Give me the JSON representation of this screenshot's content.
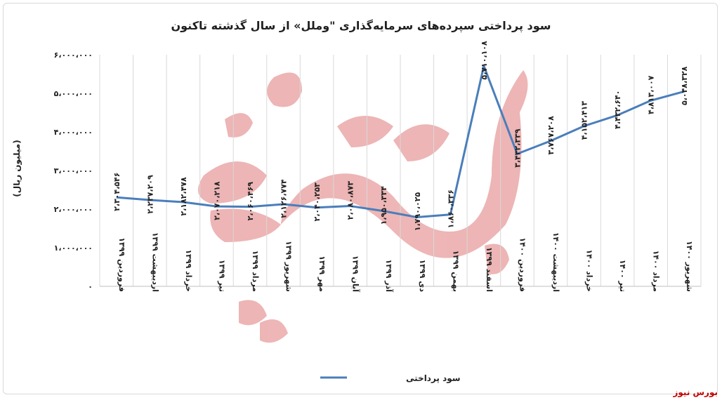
{
  "chart_data": {
    "type": "line",
    "title": "سود پرداختی سپرده‌های سرمایه‌گذاری \"وملل» از سال گذشته تاکنون",
    "ylabel": "(میلیون ریال)",
    "xlabel": "",
    "ylim": [
      0,
      6000000
    ],
    "yticks": [
      0,
      1000000,
      2000000,
      3000000,
      4000000,
      5000000,
      6000000
    ],
    "ytick_labels": [
      "۰",
      "۱،۰۰۰،۰۰۰",
      "۲،۰۰۰،۰۰۰",
      "۳،۰۰۰،۰۰۰",
      "۴،۰۰۰،۰۰۰",
      "۵،۰۰۰،۰۰۰",
      "۶،۰۰۰،۰۰۰"
    ],
    "grid": "vertical",
    "legend_position": "bottom",
    "line_color": "#4a7ebb",
    "categories": [
      "فروردین ۱۳۹۹",
      "اردیبهشت ۱۳۹۹",
      "خرداد ۱۳۹۹",
      "تیر ۱۳۹۹",
      "مرداد ۱۳۹۹",
      "شهریور ۱۳۹۹",
      "مهر ۱۳۹۹",
      "آبان ۱۳۹۹",
      "آذر ۱۳۹۹",
      "دی ۱۳۹۹",
      "بهمن ۱۳۹۹",
      "اسفند ۱۳۹۹",
      "فروردین ۱۴۰۰",
      "اردیبهشت ۱۴۰۰",
      "خرداد ۱۴۰۰",
      "تیر ۱۴۰۰",
      "مرداد ۱۴۰۰",
      "شهریور ۱۴۰۰"
    ],
    "series": [
      {
        "name": "سود پرداختی",
        "values": [
          2304546,
          2237209,
          2182478,
          2070218,
          2060469,
          2126774,
          2040253,
          2080873,
          1950334,
          1790025,
          1860336,
          5710108,
          3432339,
          3767208,
          4152413,
          4432640,
          4813007,
          5048328
        ],
        "labels": [
          "۲،۳۰۴،۵۴۶",
          "۲،۲۳۷،۲۰۹",
          "۲،۱۸۲،۴۷۸",
          "۲،۰۷۰،۲۱۸",
          "۲،۰۶۰،۴۶۹",
          "۲،۱۲۶،۷۷۴",
          "۲،۰۴۰،۲۵۳",
          "۲،۰۸۰،۸۷۳",
          "۱،۹۵۰،۳۳۴",
          "۱،۷۹۰،۰۲۵",
          "۱،۸۶۰،۳۳۶",
          "۵،۷۱۰،۱۰۸",
          "۳،۴۳۲،۳۳۹",
          "۳،۷۶۷،۲۰۸",
          "۴،۱۵۲،۴۱۳",
          "۴،۴۳۲،۶۴۰",
          "۴،۸۱۳،۰۰۷",
          "۵،۰۴۸،۳۲۸"
        ]
      }
    ]
  },
  "watermark": "بورس نیوز",
  "source": "بورس نیوز"
}
